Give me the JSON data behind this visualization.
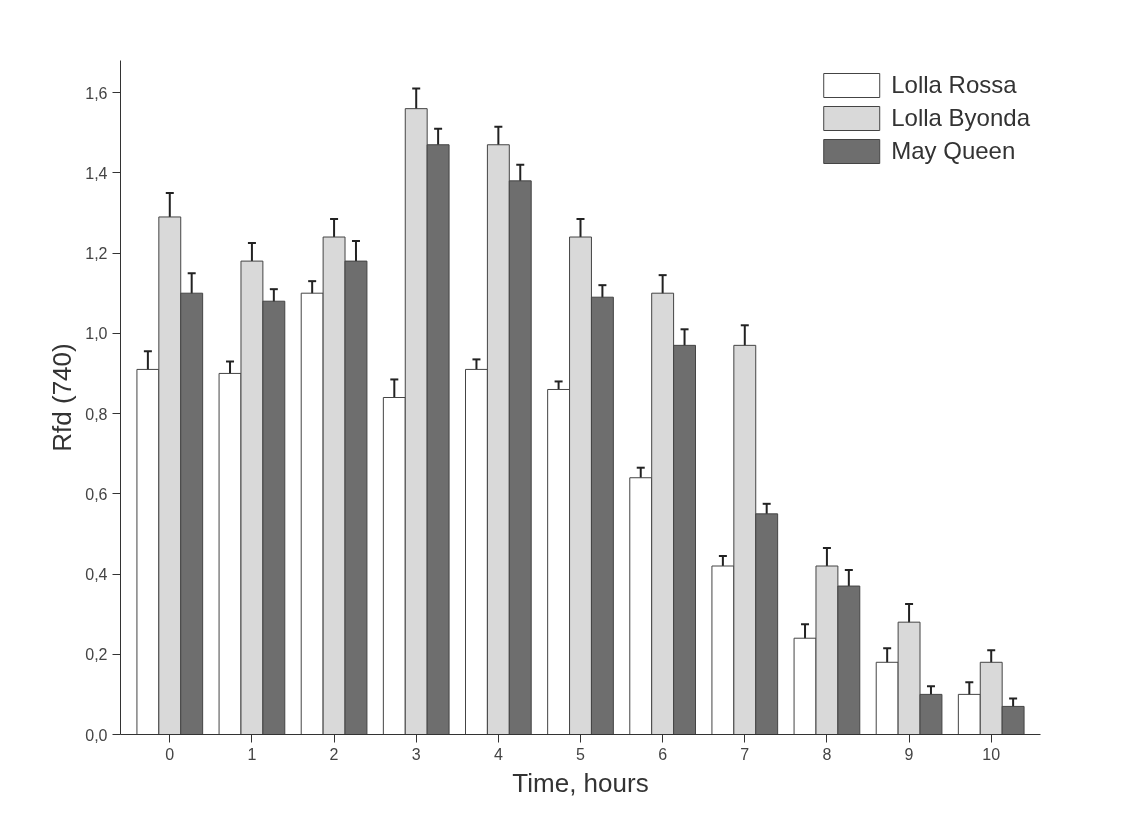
{
  "chart_data": {
    "type": "bar",
    "xlabel": "Time, hours",
    "ylabel": "Rfd (740)",
    "categories": [
      "0",
      "1",
      "2",
      "3",
      "4",
      "5",
      "6",
      "7",
      "8",
      "9",
      "10"
    ],
    "series": [
      {
        "name": "Lolla Rossa",
        "color": "#ffffff",
        "values": [
          0.91,
          0.9,
          1.1,
          0.84,
          0.91,
          0.86,
          0.64,
          0.42,
          0.24,
          0.18,
          0.1
        ],
        "errors": [
          0.045,
          0.03,
          0.03,
          0.045,
          0.025,
          0.02,
          0.025,
          0.025,
          0.035,
          0.035,
          0.03
        ]
      },
      {
        "name": "Lolla Byonda",
        "color": "#d9d9d9",
        "values": [
          1.29,
          1.18,
          1.24,
          1.56,
          1.47,
          1.24,
          1.1,
          0.97,
          0.42,
          0.28,
          0.18
        ],
        "errors": [
          0.06,
          0.045,
          0.045,
          0.05,
          0.045,
          0.045,
          0.045,
          0.05,
          0.045,
          0.045,
          0.03
        ]
      },
      {
        "name": "May Queen",
        "color": "#6e6e6e",
        "values": [
          1.1,
          1.08,
          1.18,
          1.47,
          1.38,
          1.09,
          0.97,
          0.55,
          0.37,
          0.1,
          0.07
        ],
        "errors": [
          0.05,
          0.03,
          0.05,
          0.04,
          0.04,
          0.03,
          0.04,
          0.025,
          0.04,
          0.02,
          0.02
        ]
      }
    ],
    "ylim": [
      0,
      1.68
    ],
    "yticks": [
      {
        "value": 0,
        "label": "0,0"
      },
      {
        "value": 0.2,
        "label": "0,2"
      },
      {
        "value": 0.4,
        "label": "0,4"
      },
      {
        "value": 0.6,
        "label": "0,6"
      },
      {
        "value": 0.8,
        "label": "0,8"
      },
      {
        "value": 1.0,
        "label": "1,0"
      },
      {
        "value": 1.2,
        "label": "1,2"
      },
      {
        "value": 1.4,
        "label": "1,4"
      },
      {
        "value": 1.6,
        "label": "1,6"
      }
    ],
    "grid": false,
    "legend": "top right"
  }
}
